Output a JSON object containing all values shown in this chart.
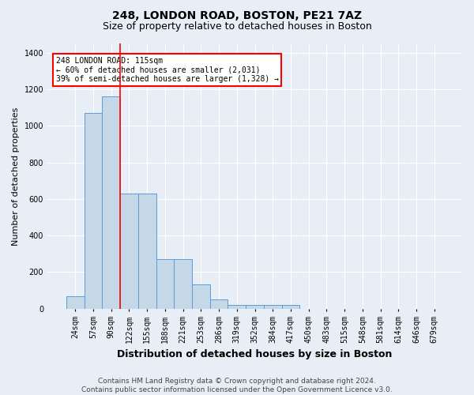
{
  "title": "248, LONDON ROAD, BOSTON, PE21 7AZ",
  "subtitle": "Size of property relative to detached houses in Boston",
  "xlabel": "Distribution of detached houses by size in Boston",
  "ylabel": "Number of detached properties",
  "bin_labels": [
    "24sqm",
    "57sqm",
    "90sqm",
    "122sqm",
    "155sqm",
    "188sqm",
    "221sqm",
    "253sqm",
    "286sqm",
    "319sqm",
    "352sqm",
    "384sqm",
    "417sqm",
    "450sqm",
    "483sqm",
    "515sqm",
    "548sqm",
    "581sqm",
    "614sqm",
    "646sqm",
    "679sqm"
  ],
  "bar_values": [
    70,
    1070,
    1160,
    630,
    630,
    270,
    270,
    135,
    50,
    20,
    20,
    20,
    20,
    0,
    0,
    0,
    0,
    0,
    0,
    0,
    0
  ],
  "bar_color": "#c5d8e8",
  "bar_edge_color": "#5b9bd5",
  "red_line_label": "248 LONDON ROAD: 115sqm",
  "annotation_line2": "← 60% of detached houses are smaller (2,031)",
  "annotation_line3": "39% of semi-detached houses are larger (1,328) →",
  "annotation_box_color": "white",
  "annotation_box_edge_color": "red",
  "ylim": [
    0,
    1450
  ],
  "yticks": [
    0,
    200,
    400,
    600,
    800,
    1000,
    1200,
    1400
  ],
  "footer_line1": "Contains HM Land Registry data © Crown copyright and database right 2024.",
  "footer_line2": "Contains public sector information licensed under the Open Government Licence v3.0.",
  "bg_color": "#e8eef5",
  "plot_bg_color": "#e8eef5",
  "grid_color": "white",
  "title_fontsize": 10,
  "subtitle_fontsize": 9,
  "axis_label_fontsize": 8,
  "tick_fontsize": 7,
  "footer_fontsize": 6.5
}
